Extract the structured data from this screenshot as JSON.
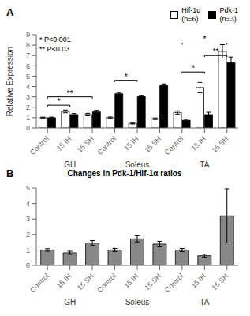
{
  "chart_data": [
    {
      "type": "bar",
      "panel_label": "A",
      "ylabel": "Relative Expression",
      "categories": [
        "Control",
        "15 IH",
        "15 SH",
        "Control",
        "15 IH",
        "15 SH",
        "Control",
        "15 IH",
        "15 SH"
      ],
      "groups": [
        "GH",
        "Soleus",
        "TA"
      ],
      "series": [
        {
          "name": "Hif-1α\n(n=6)",
          "color": "white",
          "values": [
            1.0,
            1.6,
            1.3,
            1.0,
            0.45,
            0.9,
            1.5,
            3.9,
            7.4
          ],
          "errors": [
            0.06,
            0.13,
            0.12,
            0.07,
            0.07,
            0.08,
            0.15,
            0.5,
            0.65
          ]
        },
        {
          "name": "Pdk-1\n(n=3)",
          "color": "black",
          "values": [
            1.0,
            1.3,
            1.55,
            3.3,
            3.05,
            4.1,
            0.75,
            1.3,
            6.3
          ],
          "errors": [
            0.06,
            0.1,
            0.15,
            0.12,
            0.1,
            0.15,
            0.1,
            0.22,
            0.55
          ]
        }
      ],
      "ylim": [
        0,
        9
      ],
      "yticks": [
        0,
        1,
        2,
        3,
        4,
        5,
        6,
        7,
        8,
        9
      ],
      "legend": "upper right",
      "annotation": "* P<0.001\n** P<0.03",
      "brackets": [
        {
          "from": 0,
          "to": 1,
          "y": 2.2,
          "label": "*"
        },
        {
          "from": 0,
          "to": 2,
          "y": 3.0,
          "label": "**"
        },
        {
          "from": 3,
          "to": 4,
          "y": 4.6,
          "label": "*"
        },
        {
          "from": 6,
          "to": 7,
          "y": 5.4,
          "label": "*"
        },
        {
          "from": 6,
          "to": 8,
          "y": 8.2,
          "label": "*"
        },
        {
          "from": 7,
          "to": 8,
          "y": 7.0,
          "label": "**"
        }
      ],
      "grid": false
    },
    {
      "type": "bar",
      "panel_label": "B",
      "title": "Changes in Pdk-1/Hif-1α ratios",
      "categories": [
        "Control",
        "15 IH",
        "15 SH",
        "Control",
        "15 IH",
        "15 SH",
        "Control",
        "15 IH",
        "15 SH"
      ],
      "groups": [
        "GH",
        "Soleus",
        "TA"
      ],
      "values": [
        1.0,
        0.82,
        1.45,
        1.0,
        1.72,
        1.38,
        1.0,
        0.63,
        3.2
      ],
      "errors": [
        0.08,
        0.1,
        0.16,
        0.1,
        0.2,
        0.18,
        0.1,
        0.1,
        1.75
      ],
      "color": "#888888",
      "ylim": [
        0,
        5
      ],
      "yticks": [
        0,
        1,
        2,
        3,
        4,
        5
      ],
      "grid": false
    }
  ]
}
